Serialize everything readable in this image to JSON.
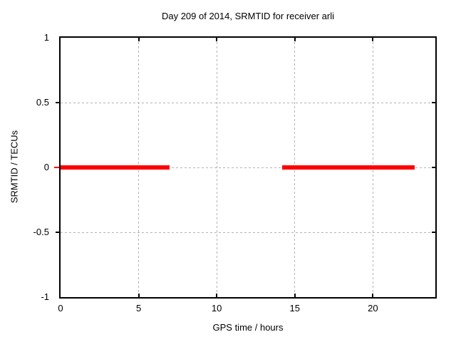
{
  "chart_data": {
    "type": "line",
    "title": "Day 209 of 2014, SRMTID for receiver arli",
    "xlabel": "GPS time / hours",
    "ylabel": "SRMTID / TECUs",
    "xlim": [
      0,
      24
    ],
    "ylim": [
      -1,
      1
    ],
    "x_ticks": [
      0,
      5,
      10,
      15,
      20
    ],
    "x_tick_labels": [
      "0",
      "5",
      "10",
      "15",
      "20"
    ],
    "y_ticks": [
      -1,
      -0.5,
      0,
      0.5,
      1
    ],
    "y_tick_labels": [
      "-1",
      "-0.5",
      "0",
      "0.5",
      "1"
    ],
    "grid": true,
    "legend": false,
    "series": [
      {
        "name": "SRMTID",
        "color": "#ff0000",
        "segments": [
          {
            "y": 0,
            "x_start": 0.0,
            "x_end": 7.0
          },
          {
            "y": 0,
            "x_start": 14.2,
            "x_end": 22.7
          }
        ]
      }
    ]
  },
  "colors": {
    "line": "#ff0000",
    "grid": "#b3b3b3",
    "border": "#000000",
    "background": "#ffffff",
    "text": "#000000"
  }
}
